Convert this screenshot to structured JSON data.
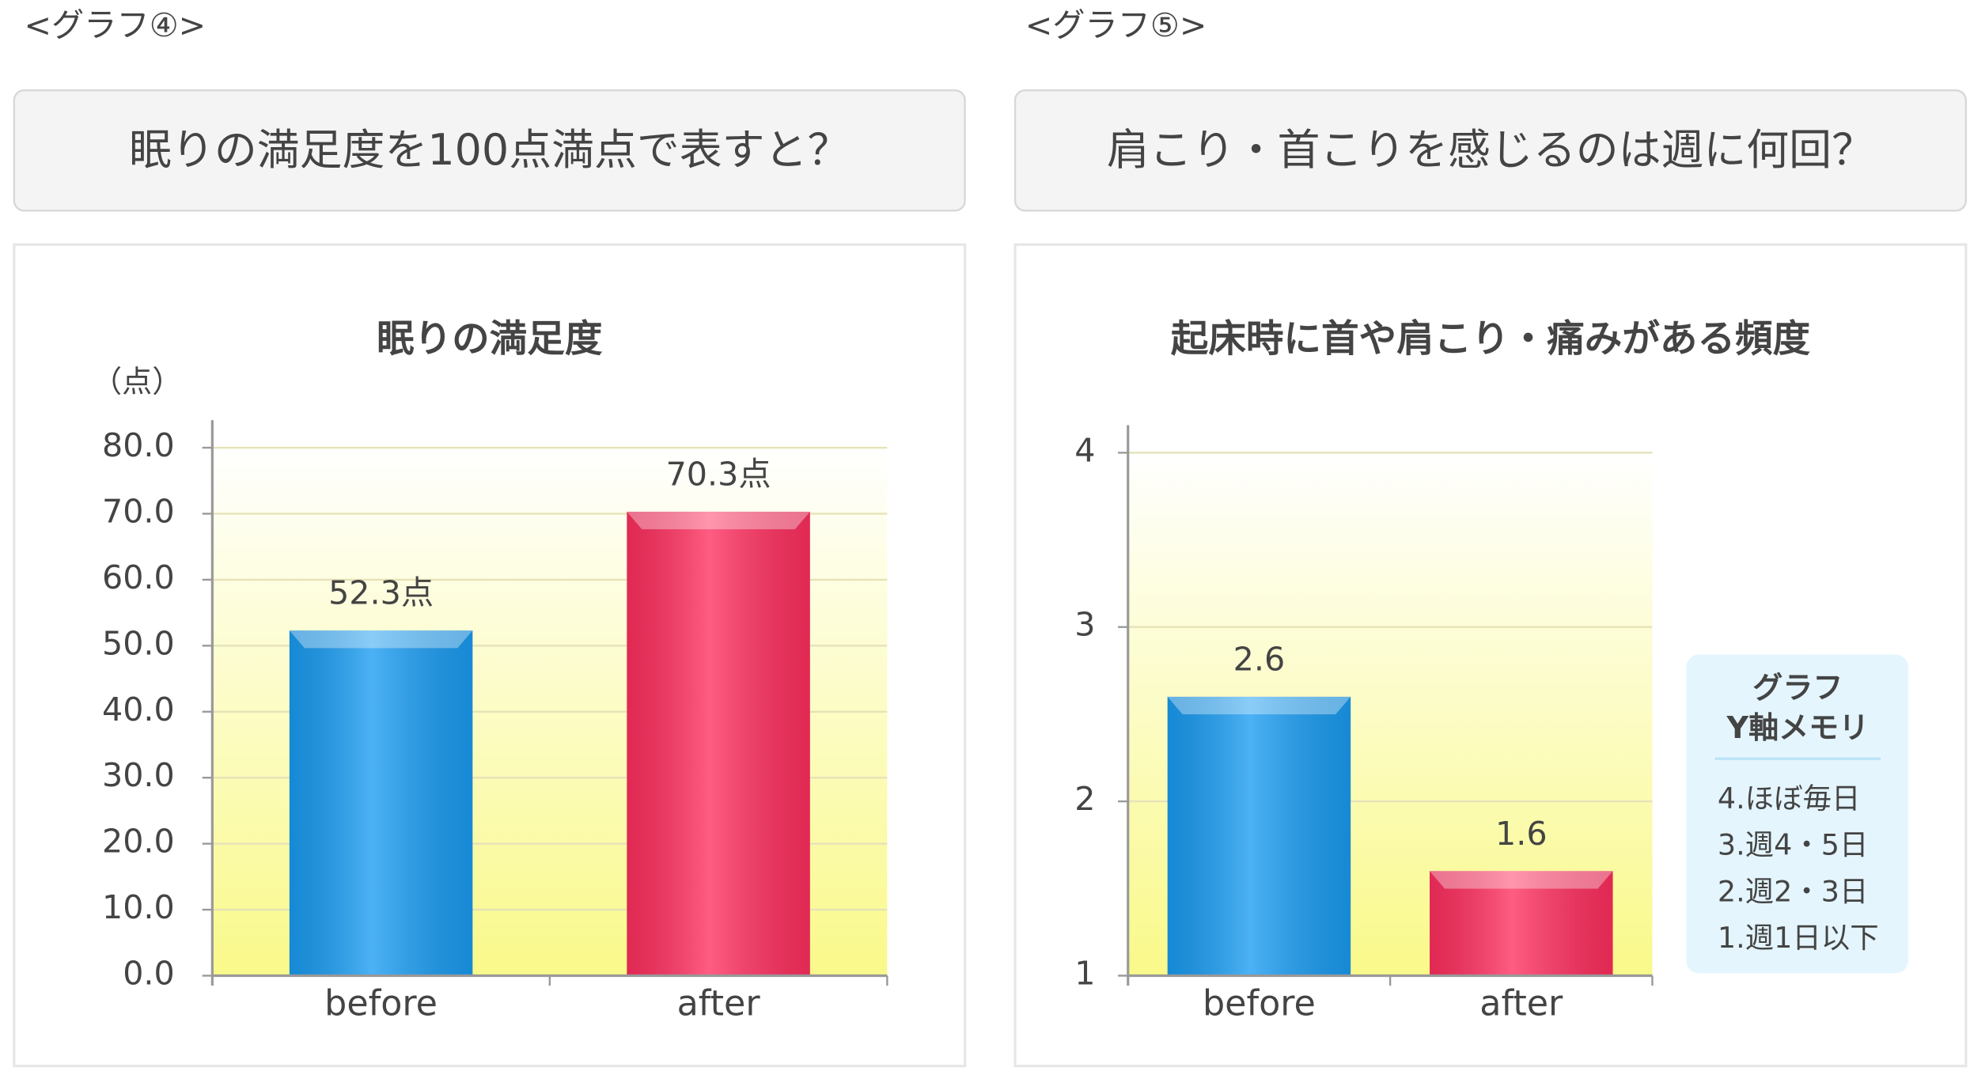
{
  "chart_data": [
    {
      "type": "bar",
      "section_label": "<グラフ④>",
      "question": "眠りの満足度を100点満点で表すと？",
      "title": "眠りの満足度",
      "y_unit": "（点）",
      "categories": [
        "before",
        "after"
      ],
      "values": [
        52.3,
        70.3
      ],
      "value_labels": [
        "52.3点",
        "70.3点"
      ],
      "colors": [
        "#1a9cf2",
        "#ff2f5f"
      ],
      "ylim": [
        0,
        80
      ],
      "yticks": [
        {
          "value": 0,
          "label": "0.0"
        },
        {
          "value": 10,
          "label": "10.0"
        },
        {
          "value": 20,
          "label": "20.0"
        },
        {
          "value": 30,
          "label": "30.0"
        },
        {
          "value": 40,
          "label": "40.0"
        },
        {
          "value": 50,
          "label": "50.0"
        },
        {
          "value": 60,
          "label": "60.0"
        },
        {
          "value": 70,
          "label": "70.0"
        },
        {
          "value": 80,
          "label": "80.0"
        }
      ],
      "grid": true
    },
    {
      "type": "bar",
      "section_label": "<グラフ⑤>",
      "question": "肩こり・首こりを感じるのは週に何回？",
      "title": "起床時に首や肩こり・痛みがある頻度",
      "categories": [
        "before",
        "after"
      ],
      "values": [
        2.6,
        1.6
      ],
      "colors": [
        "#1a9cf2",
        "#ff2f5f"
      ],
      "ylim": [
        1,
        4
      ],
      "yticks": [
        1,
        2,
        3,
        4
      ],
      "grid": true,
      "y_axis_memo": {
        "title": [
          "グラフ",
          "Y軸メモリ"
        ],
        "items": [
          "4.ほぼ毎日",
          "3.週4・5日",
          "2.週2・3日",
          "1.週1日以下"
        ]
      }
    }
  ]
}
